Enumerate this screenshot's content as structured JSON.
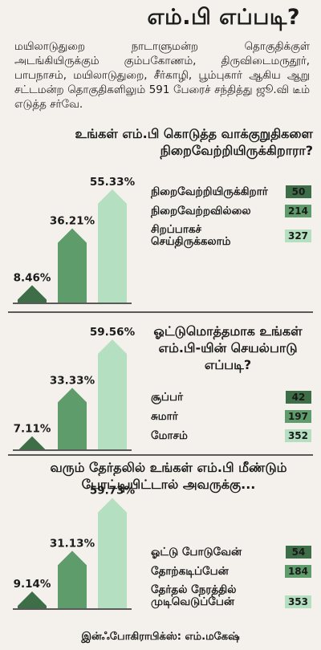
{
  "title": "எம்.பி எப்படி?",
  "intro": "மயிலாடுதுறை நாடாளுமன்ற தொகுதிக்குள் அடங்கியிருக்கும் கும்பகோணம், திருவிடைமருதூர், பாபநாசம், மயிலாடுதுறை, சீர்காழி, பூம்புகார் ஆகிய ஆறு சட்டமன்ற தொகுதிகளிலும் 591 பேரைச் சந்தித்து ஜூ.வி டீம் எடுத்த சர்வே.",
  "credit": "இன்ஃபோகிராபிக்ஸ்: எம்.மகேஷ்",
  "colors": {
    "light": "#b5dfc1",
    "mid": "#5f9c6b",
    "dark": "#3e6e48",
    "line": "#5a5a5a"
  },
  "chart_data": [
    {
      "type": "bar",
      "question": "உங்கள் எம்.பி கொடுத்த வாக்குறுதிகளை நிறைவேற்றியிருக்கிறாரா?",
      "categories": [
        "நிறைவேற்றியிருக்கிறார்",
        "நிறைவேற்றவில்லை",
        "சிறப்பாகச் செய்திருக்கலாம்"
      ],
      "counts": [
        "50",
        "214",
        "327"
      ],
      "values": [
        8.46,
        36.21,
        55.33
      ],
      "value_labels": [
        "8.46%",
        "36.21%",
        "55.33%"
      ]
    },
    {
      "type": "bar",
      "question": "ஓட்டுமொத்தமாக உங்கள் எம்.பி-யின் செயல்பாடு எப்படி?",
      "categories": [
        "சூப்பர்",
        "சுமார்",
        "மோசம்"
      ],
      "counts": [
        "42",
        "197",
        "352"
      ],
      "values": [
        7.11,
        33.33,
        59.56
      ],
      "value_labels": [
        "7.11%",
        "33.33%",
        "59.56%"
      ]
    },
    {
      "type": "bar",
      "question": "வரும் தேர்தலில் உங்கள் எம்.பி மீண்டும் போட்டியிட்டால் அவருக்கு...",
      "categories": [
        "ஓட்டு போடுவேன்",
        "தோற்கடிப்பேன்",
        "தேர்தல் நேரத்தில் முடிவெடுப்பேன்"
      ],
      "counts": [
        "54",
        "184",
        "353"
      ],
      "values": [
        9.14,
        31.13,
        59.73
      ],
      "value_labels": [
        "9.14%",
        "31.13%",
        "59.73%"
      ]
    }
  ]
}
